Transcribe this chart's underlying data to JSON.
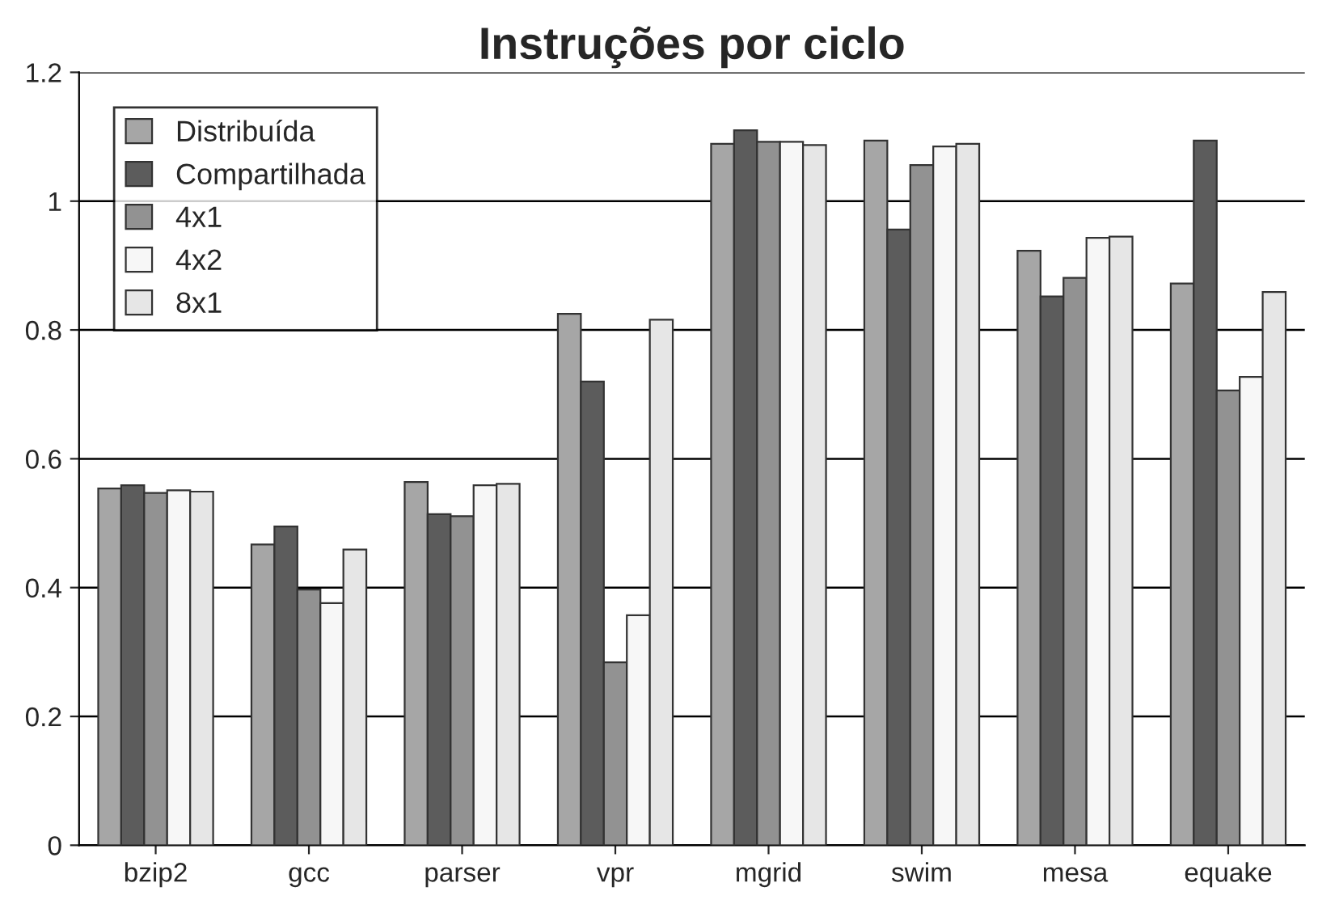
{
  "chart_data": {
    "type": "bar",
    "title": "Instruções por ciclo",
    "categories": [
      "bzip2",
      "gcc",
      "parser",
      "vpr",
      "mgrid",
      "swim",
      "mesa",
      "equake"
    ],
    "series": [
      {
        "name": "Distribuída",
        "color": "#a6a6a6",
        "values": [
          0.554,
          0.467,
          0.564,
          0.825,
          1.089,
          1.094,
          0.923,
          0.872
        ]
      },
      {
        "name": "Compartilhada",
        "color": "#5c5c5c",
        "values": [
          0.559,
          0.495,
          0.514,
          0.72,
          1.11,
          0.956,
          0.852,
          1.094
        ]
      },
      {
        "name": "4x1",
        "color": "#929292",
        "values": [
          0.547,
          0.397,
          0.511,
          0.284,
          1.092,
          1.056,
          0.881,
          0.706
        ]
      },
      {
        "name": "4x2",
        "color": "#f7f7f7",
        "values": [
          0.551,
          0.376,
          0.559,
          0.357,
          1.092,
          1.085,
          0.943,
          0.727
        ]
      },
      {
        "name": "8x1",
        "color": "#e6e6e6",
        "values": [
          0.549,
          0.459,
          0.561,
          0.816,
          1.087,
          1.089,
          0.945,
          0.859
        ]
      }
    ],
    "ylim": [
      0,
      1.2
    ],
    "yticks": [
      0,
      0.2,
      0.4,
      0.6,
      0.8,
      1,
      1.2
    ],
    "grid": "y",
    "legend": "top left"
  }
}
